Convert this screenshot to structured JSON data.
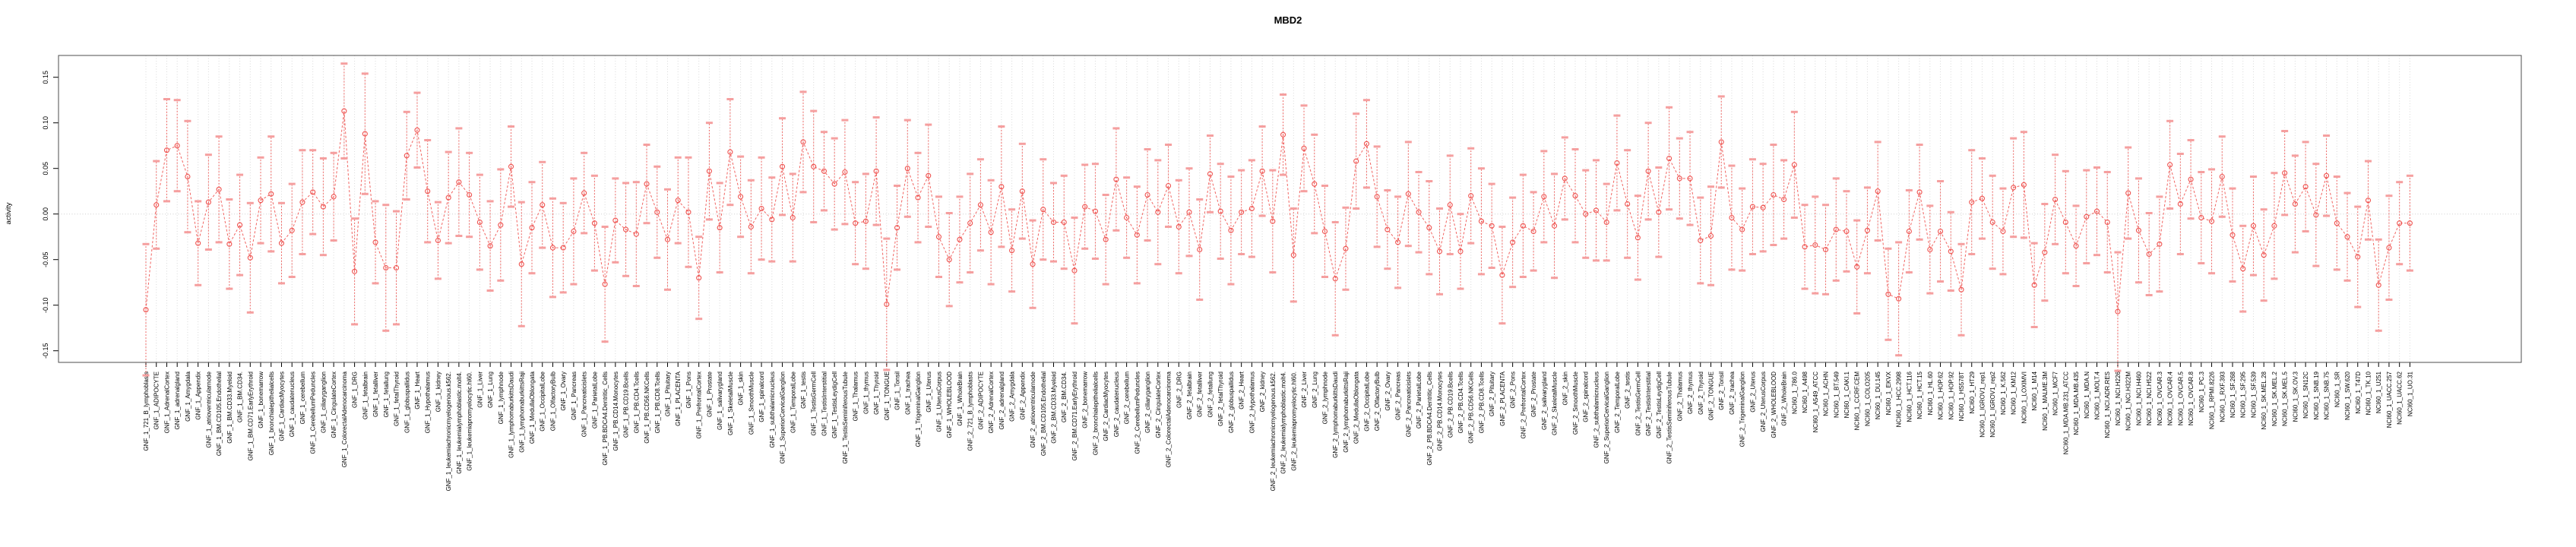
{
  "chart_data": {
    "type": "scatter",
    "subtype": "mean-with-error-bars",
    "title": "MBD2",
    "xlabel": "",
    "ylabel": "activity",
    "ylim": [
      -0.17,
      0.175
    ],
    "yticks": [
      0.15,
      0.1,
      0.05,
      0.0,
      -0.05,
      -0.1,
      -0.15
    ],
    "ytick_labels": [
      "0.15",
      "0.10",
      "0.05",
      "0.00",
      "-0.05",
      "-0.10",
      "-0.15"
    ],
    "legend": "none",
    "grid": {
      "vertical_per_category": true,
      "zero_line": true,
      "style": "dotted"
    },
    "colors": {
      "series": "#ef5350",
      "whisker": "#ef5350",
      "cap": "#f59f9f",
      "grid": "#d9d9d9",
      "zero_line": "#d0d0d0",
      "box": "#4d4d4d",
      "text": "#000000",
      "background": "#ffffff"
    },
    "categories": [
      "GNF_1_721_B_lymphoblasts",
      "GNF_1_ADIPOCYTE",
      "GNF_1_AdrenalCortex",
      "GNF_1_adrenalgland",
      "GNF_1_Amygdala",
      "GNF_1_Appendix",
      "GNF_1_atrioventricularnode",
      "GNF_1_BM.CD105.Endothelial",
      "GNF_1_BM.CD33.Myeloid",
      "GNF_1_BM.CD34.",
      "GNF_1_BM.CD71.EarlyErythroid",
      "GNF_1_bonemarrow",
      "GNF_1_bronchialepithelialcells",
      "GNF_1_CardiacMyocytes",
      "GNF_1_caudatenucleus",
      "GNF_1_cerebellum",
      "GNF_1_CerebellumPeduncles",
      "GNF_1_ciliaryganglion",
      "GNF_1_CingulateCortex",
      "GNF_1_ColorectalAdenocarcinoma",
      "GNF_1_DRG",
      "GNF_1_fetalbrain",
      "GNF_1_fetalliver",
      "GNF_1_fetallung",
      "GNF_1_fetalThyroid",
      "GNF_1_globuspallidus",
      "GNF_1_Heart",
      "GNF_1_Hypothalamus",
      "GNF_1_kidney",
      "GNF_1_leukemiachronicmyelogenous.k562.",
      "GNF_1_leukemialymphoblastic.molt4.",
      "GNF_1_leukemiapromyelocytic.hl60.",
      "GNF_1_Liver",
      "GNF_1_Lung",
      "GNF_1_lymphnode",
      "GNF_1_lymphomaburkittsDaudi",
      "GNF_1_lymphomaburkittsRaji",
      "GNF_1_MedullaOblongata",
      "GNF_1_OccipitalLobe",
      "GNF_1_OlfactoryBulb",
      "GNF_1_Ovary",
      "GNF_1_Pancreas",
      "GNF_1_Pancreaticislets",
      "GNF_1_ParietalLobe",
      "GNF_1_PB.BDCA4.Dentritic_Cells",
      "GNF_1_PB.CD14.Monocytes",
      "GNF_1_PB.CD19.Bcells",
      "GNF_1_PB.CD4.Tcells",
      "GNF_1_PB.CD56.NKCells",
      "GNF_1_PB.CD8.Tcells",
      "GNF_1_Pituitary",
      "GNF_1_PLACENTA",
      "GNF_1_Pons",
      "GNF_1_PrefrontalCortex",
      "GNF_1_Prostate",
      "GNF_1_salivarygland",
      "GNF_1_SkeletalMuscle",
      "GNF_1_skin",
      "GNF_1_SmoothMuscle",
      "GNF_1_spinalcord",
      "GNF_1_subthalamicnucleus",
      "GNF_1_SuperiorCervicalGanglion",
      "GNF_1_TemporalLobe",
      "GNF_1_testis",
      "GNF_1_TestisGermCell",
      "GNF_1_TestisInterstitial",
      "GNF_1_TestisLeydigCell",
      "GNF_1_TestisSeminiferousTubule",
      "GNF_1_Thalamus",
      "GNF_1_thymus",
      "GNF_1_Thyroid",
      "GNF_1_TONGUE",
      "GNF_1_Tonsil",
      "GNF_1_trachea",
      "GNF_1_TrigeminalGanglion",
      "GNF_1_Uterus",
      "GNF_1_UterusCorpus",
      "GNF_1_WHOLEBLOOD",
      "GNF_1_WholeBrain",
      "GNF_2_721_B_lymphoblasts",
      "GNF_2_ADIPOCYTE",
      "GNF_2_AdrenalCortex",
      "GNF_2_adrenalgland",
      "GNF_2_Amygdala",
      "GNF_2_Appendix",
      "GNF_2_atrioventricularnode",
      "GNF_2_BM.CD105.Endothelial",
      "GNF_2_BM.CD33.Myeloid",
      "GNF_2_BM.CD34.",
      "GNF_2_BM.CD71.EarlyErythroid",
      "GNF_2_bonemarrow",
      "GNF_2_bronchialepithelialcells",
      "GNF_2_CardiacMyocytes",
      "GNF_2_caudatenucleus",
      "GNF_2_cerebellum",
      "GNF_2_CerebellumPeduncles",
      "GNF_2_ciliaryganglion",
      "GNF_2_CingulateCortex",
      "GNF_2_ColorectalAdenocarcinoma",
      "GNF_2_DRG",
      "GNF_2_fetalbrain",
      "GNF_2_fetalliver",
      "GNF_2_fetallung",
      "GNF_2_fetalThyroid",
      "GNF_2_globuspallidus",
      "GNF_2_Heart",
      "GNF_2_Hypothalamus",
      "GNF_2_kidney",
      "GNF_2_leukemiachronicmyelogenous.k562.",
      "GNF_2_leukemialymphoblastic.molt4.",
      "GNF_2_leukemiapromyelocytic.hl60.",
      "GNF_2_Liver",
      "GNF_2_Lung",
      "GNF_2_lymphnode",
      "GNF_2_lymphomaburkittsDaudi",
      "GNF_2_lymphomaburkittsRaji",
      "GNF_2_MedullaOblongata",
      "GNF_2_OccipitalLobe",
      "GNF_2_OlfactoryBulb",
      "GNF_2_Ovary",
      "GNF_2_Pancreas",
      "GNF_2_Pancreaticislets",
      "GNF_2_ParietalLobe",
      "GNF_2_PB.BDCA4.Dentritic_Cells",
      "GNF_2_PB.CD14.Monocytes",
      "GNF_2_PB.CD19.Bcells",
      "GNF_2_PB.CD4.Tcells",
      "GNF_2_PB.CD56.NKCells",
      "GNF_2_PB.CD8.Tcells",
      "GNF_2_Pituitary",
      "GNF_2_PLACENTA",
      "GNF_2_Pons",
      "GNF_2_PrefrontalCortex",
      "GNF_2_Prostate",
      "GNF_2_salivarygland",
      "GNF_2_SkeletalMuscle",
      "GNF_2_skin",
      "GNF_2_SmoothMuscle",
      "GNF_2_spinalcord",
      "GNF_2_subthalamicnucleus",
      "GNF_2_SuperiorCervicalGanglion",
      "GNF_2_TemporalLobe",
      "GNF_2_testis",
      "GNF_2_TestisGermCell",
      "GNF_2_TestisInterstitial",
      "GNF_2_TestisLeydigCell",
      "GNF_2_TestisSeminiferousTubule",
      "GNF_2_Thalamus",
      "GNF_2_thymus",
      "GNF_2_Thyroid",
      "GNF_2_TONGUE",
      "GNF_2_Tonsil",
      "GNF_2_trachea",
      "GNF_2_TrigeminalGanglion",
      "GNF_2_Uterus",
      "GNF_2_UterusCorpus",
      "GNF_2_WHOLEBLOOD",
      "GNF_2_WholeBrain",
      "NCI60_1_786.0",
      "NCI60_1_A498",
      "NCI60_1_A549_ATCC",
      "NCI60_1_ACHN",
      "NCI60_1_BT.549",
      "NCI60_1_CAKI.1",
      "NCI60_1_CCRF.CEM",
      "NCI60_1_COLO205",
      "NCI60_1_DU.145",
      "NCI60_1_EKVX",
      "NCI60_1_HCC.2998",
      "NCI60_1_HCT.116",
      "NCI60_1_HCT.15",
      "NCI60_1_HL.60",
      "NCI60_1_HOP.62",
      "NCI60_1_HOP.92",
      "NCI60_1_HS578T",
      "NCI60_1_HT29",
      "NCI60_1_IGROV1_rep1",
      "NCI60_1_IGROV1_rep2",
      "NCI60_1_K.562",
      "NCI60_1_KM12",
      "NCI60_1_LOXIMVI",
      "NCI60_1_M14",
      "NCI60_1_MALME.3M",
      "NCI60_1_MCF7",
      "NCI60_1_MDA.MB.231_ATCC",
      "NCI60_1_MDA.MB.435",
      "NCI60_1_MDA.N",
      "NCI60_1_MOLT.4",
      "NCI60_1_NCI.ADR.RES",
      "NCI60_1_NCI.H226",
      "NCI60_1_NCI.H322M",
      "NCI60_1_NCI.H460",
      "NCI60_1_NCI.H522",
      "NCI60_1_OVCAR.3",
      "NCI60_1_OVCAR.4",
      "NCI60_1_OVCAR.5",
      "NCI60_1_OVCAR.8",
      "NCI60_1_PC.3",
      "NCI60_1_RPMI.8226",
      "NCI60_1_RXF.393",
      "NCI60_1_SF.268",
      "NCI60_1_SF.295",
      "NCI60_1_SF.539",
      "NCI60_1_SK.MEL.28",
      "NCI60_1_SK.MEL.2",
      "NCI60_1_SK.MEL.5",
      "NCI60_1_SK.OV.3",
      "NCI60_1_SN12C",
      "NCI60_1_SNB.19",
      "NCI60_1_SNB.75",
      "NCI60_1_SR",
      "NCI60_1_SW.620",
      "NCI60_1_T47D",
      "NCI60_1_TK.10",
      "NCI60_1_U251",
      "NCI60_1_UACC.257",
      "NCI60_1_UACC.62",
      "NCI60_1_UO.31"
    ],
    "values": [
      -0.105,
      0.01,
      0.07,
      0.075,
      0.041,
      -0.032,
      0.013,
      0.027,
      -0.033,
      -0.012,
      -0.048,
      0.015,
      0.022,
      -0.032,
      -0.018,
      0.013,
      0.024,
      0.008,
      0.019,
      0.113,
      -0.063,
      0.088,
      -0.031,
      -0.059,
      -0.059,
      0.064,
      0.092,
      0.025,
      -0.029,
      0.018,
      0.035,
      0.021,
      -0.009,
      -0.035,
      -0.012,
      0.052,
      -0.055,
      -0.015,
      0.01,
      -0.037,
      -0.037,
      -0.019,
      0.023,
      -0.01,
      -0.077,
      -0.007,
      -0.017,
      -0.022,
      0.033,
      0.002,
      -0.028,
      0.015,
      0.002,
      -0.07,
      0.047,
      -0.015,
      0.068,
      0.019,
      -0.014,
      0.006,
      -0.006,
      0.052,
      -0.004,
      0.079,
      0.052,
      0.047,
      0.033,
      0.046,
      -0.01,
      -0.008,
      0.047,
      -0.099,
      -0.015,
      0.05,
      0.018,
      0.042,
      -0.025,
      -0.05,
      -0.028,
      -0.01,
      0.01,
      -0.02,
      0.03,
      -0.04,
      0.025,
      -0.055,
      0.005,
      -0.009,
      -0.009,
      -0.062,
      0.008,
      0.003,
      -0.028,
      0.038,
      -0.004,
      -0.023,
      0.021,
      0.002,
      0.031,
      -0.014,
      0.002,
      -0.039,
      0.044,
      0.003,
      -0.018,
      0.002,
      0.006,
      0.047,
      -0.008,
      0.087,
      -0.045,
      0.072,
      0.033,
      -0.019,
      -0.071,
      -0.038,
      0.058,
      0.077,
      0.019,
      -0.017,
      -0.031,
      0.022,
      0.002,
      -0.015,
      -0.041,
      0.01,
      -0.041,
      0.02,
      -0.008,
      -0.013,
      -0.067,
      -0.031,
      -0.013,
      -0.019,
      0.019,
      -0.013,
      0.039,
      0.02,
      0.0,
      0.004,
      -0.009,
      0.056,
      0.011,
      -0.026,
      0.047,
      0.002,
      0.061,
      0.039,
      0.039,
      -0.029,
      -0.024,
      0.079,
      -0.004,
      -0.017,
      0.008,
      0.007,
      0.021,
      0.016,
      0.054,
      -0.036,
      -0.034,
      -0.039,
      -0.017,
      -0.019,
      -0.058,
      -0.018,
      0.025,
      -0.088,
      -0.093,
      -0.019,
      0.024,
      -0.039,
      -0.019,
      -0.041,
      -0.083,
      0.013,
      0.017,
      -0.009,
      -0.019,
      0.029,
      0.032,
      -0.078,
      -0.042,
      0.016,
      -0.009,
      -0.035,
      -0.003,
      0.003,
      -0.009,
      -0.107,
      0.023,
      -0.018,
      -0.044,
      -0.033,
      0.054,
      0.011,
      0.038,
      -0.004,
      -0.008,
      0.041,
      -0.023,
      -0.06,
      -0.013,
      -0.045,
      -0.013,
      0.045,
      0.011,
      0.03,
      -0.001,
      0.042,
      -0.01,
      -0.025,
      -0.047,
      0.015,
      -0.078,
      -0.037,
      -0.01,
      -0.01
    ],
    "errors": [
      0.072,
      0.048,
      0.056,
      0.05,
      0.061,
      0.046,
      0.052,
      0.058,
      0.049,
      0.055,
      0.06,
      0.047,
      0.063,
      0.044,
      0.051,
      0.057,
      0.046,
      0.053,
      0.048,
      0.052,
      0.058,
      0.066,
      0.045,
      0.069,
      0.062,
      0.048,
      0.041,
      0.056,
      0.042,
      0.05,
      0.059,
      0.046,
      0.052,
      0.049,
      0.061,
      0.044,
      0.068,
      0.05,
      0.047,
      0.054,
      0.049,
      0.058,
      0.044,
      0.052,
      0.063,
      0.046,
      0.051,
      0.057,
      0.043,
      0.05,
      0.055,
      0.047,
      0.06,
      0.045,
      0.053,
      0.049,
      0.058,
      0.044,
      0.051,
      0.056,
      0.046,
      0.053,
      0.048,
      0.055,
      0.061,
      0.043,
      0.05,
      0.057,
      0.045,
      0.052,
      0.059,
      0.072,
      0.046,
      0.053,
      0.049,
      0.056,
      0.044,
      0.051,
      0.047,
      0.054,
      0.05,
      0.057,
      0.066,
      0.045,
      0.052,
      0.048,
      0.055,
      0.043,
      0.051,
      0.058,
      0.046,
      0.052,
      0.049,
      0.056,
      0.044,
      0.053,
      0.05,
      0.057,
      0.045,
      0.051,
      0.048,
      0.055,
      0.042,
      0.052,
      0.059,
      0.046,
      0.053,
      0.049,
      0.056,
      0.044,
      0.051,
      0.047,
      0.054,
      0.05,
      0.062,
      0.045,
      0.052,
      0.048,
      0.055,
      0.043,
      0.05,
      0.057,
      0.044,
      0.051,
      0.047,
      0.054,
      0.041,
      0.052,
      0.058,
      0.046,
      0.053,
      0.049,
      0.056,
      0.043,
      0.05,
      0.057,
      0.045,
      0.051,
      0.048,
      0.055,
      0.042,
      0.052,
      0.059,
      0.046,
      0.053,
      0.049,
      0.056,
      0.044,
      0.051,
      0.047,
      0.054,
      0.05,
      0.057,
      0.045,
      0.052,
      0.048,
      0.055,
      0.043,
      0.058,
      0.046,
      0.053,
      0.049,
      0.056,
      0.044,
      0.051,
      0.047,
      0.054,
      0.05,
      0.062,
      0.045,
      0.052,
      0.048,
      0.055,
      0.043,
      0.05,
      0.057,
      0.044,
      0.051,
      0.047,
      0.054,
      0.058,
      0.046,
      0.053,
      0.049,
      0.056,
      0.044,
      0.051,
      0.048,
      0.055,
      0.065,
      0.05,
      0.057,
      0.045,
      0.052,
      0.048,
      0.055,
      0.043,
      0.05,
      0.057,
      0.044,
      0.051,
      0.047,
      0.054,
      0.05,
      0.058,
      0.046,
      0.053,
      0.049,
      0.056,
      0.044,
      0.051,
      0.048,
      0.055,
      0.043,
      0.05,
      0.057,
      0.045,
      0.052
    ]
  }
}
